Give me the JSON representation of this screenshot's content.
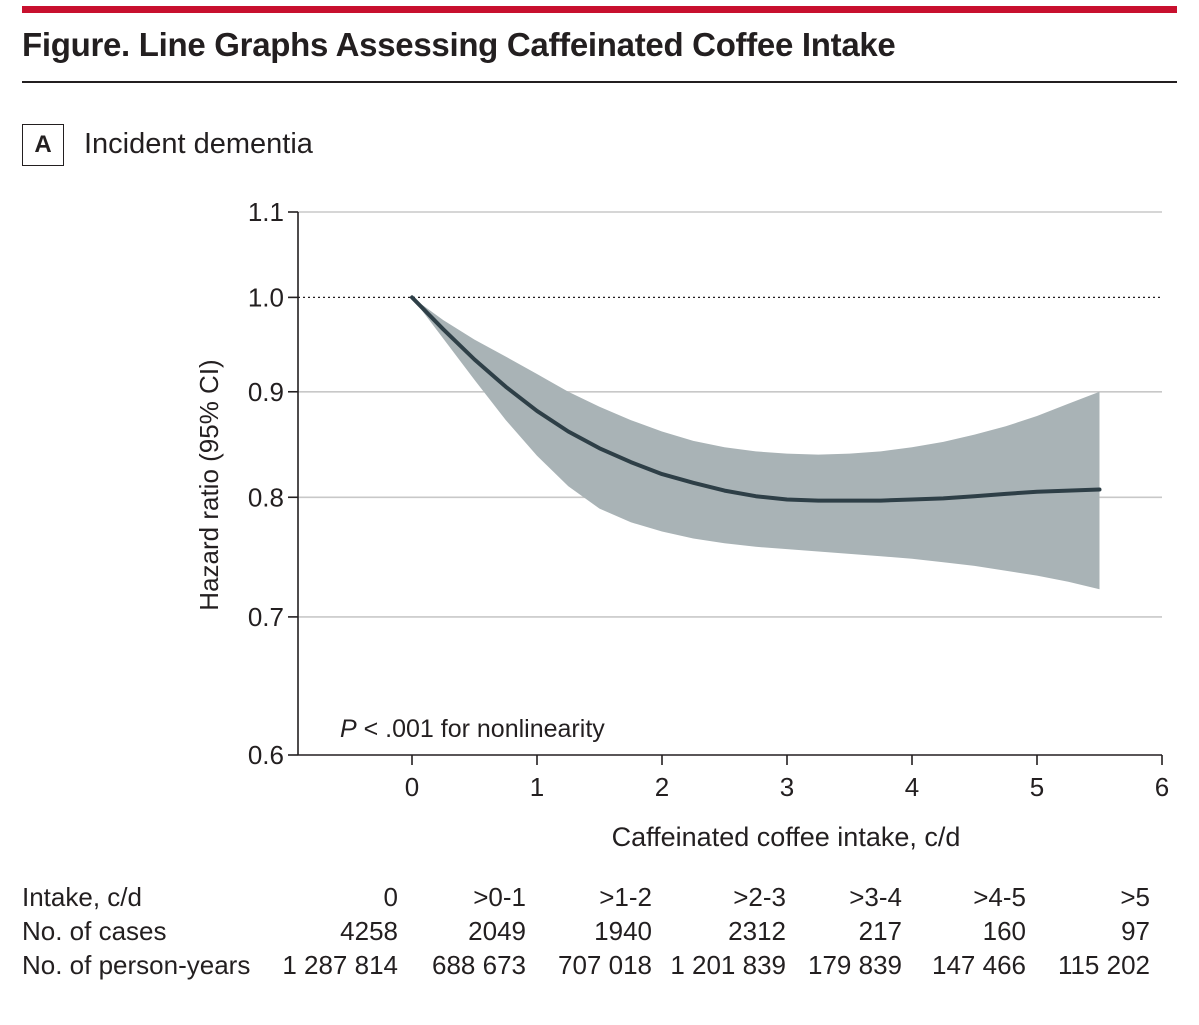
{
  "figure": {
    "title": "Figure. Line Graphs Assessing Caffeinated Coffee Intake",
    "panel_letter": "A",
    "panel_title": "Incident dementia",
    "accent_color": "#c8102e"
  },
  "chart_data": {
    "type": "line",
    "title": "Incident dementia",
    "xlabel": "Caffeinated coffee intake, c/d",
    "ylabel": "Hazard ratio (95% CI)",
    "xlim": [
      -0.9,
      6
    ],
    "ylim": [
      0.6,
      1.1
    ],
    "yscale": "log",
    "xticks": [
      0,
      1,
      2,
      3,
      4,
      5,
      6
    ],
    "yticks": [
      0.6,
      0.7,
      0.8,
      0.9,
      1.0,
      1.1
    ],
    "ytick_labels": [
      "0.6",
      "0.7",
      "0.8",
      "0.9",
      "1.0",
      "1.1"
    ],
    "gridlines": [
      0.7,
      0.8,
      0.9,
      1.1
    ],
    "reference_line": 1.0,
    "annotation_p": "P",
    "annotation_rest": " < .001 for nonlinearity",
    "series": [
      {
        "name": "Hazard ratio",
        "color": "#2e3f47",
        "x": [
          0,
          0.25,
          0.5,
          0.75,
          1,
          1.25,
          1.5,
          1.75,
          2,
          2.25,
          2.5,
          2.75,
          3,
          3.25,
          3.5,
          3.75,
          4,
          4.25,
          4.5,
          4.75,
          5,
          5.25,
          5.5
        ],
        "y": [
          1.0,
          0.965,
          0.933,
          0.905,
          0.881,
          0.861,
          0.845,
          0.832,
          0.821,
          0.813,
          0.806,
          0.801,
          0.798,
          0.797,
          0.797,
          0.797,
          0.798,
          0.799,
          0.801,
          0.803,
          0.805,
          0.806,
          0.807
        ]
      }
    ],
    "ci_band": {
      "name": "95% CI",
      "color": "#a9b3b6",
      "x": [
        0,
        0.25,
        0.5,
        0.75,
        1,
        1.25,
        1.5,
        1.75,
        2,
        2.25,
        2.5,
        2.75,
        3,
        3.25,
        3.5,
        3.75,
        4,
        4.25,
        4.5,
        4.75,
        5,
        5.25,
        5.5
      ],
      "lower": [
        1.0,
        0.955,
        0.912,
        0.872,
        0.838,
        0.81,
        0.79,
        0.778,
        0.77,
        0.764,
        0.76,
        0.757,
        0.755,
        0.753,
        0.751,
        0.749,
        0.747,
        0.744,
        0.741,
        0.737,
        0.733,
        0.728,
        0.722
      ],
      "upper": [
        1.0,
        0.975,
        0.954,
        0.936,
        0.918,
        0.9,
        0.885,
        0.872,
        0.861,
        0.852,
        0.846,
        0.842,
        0.84,
        0.839,
        0.84,
        0.842,
        0.846,
        0.851,
        0.858,
        0.866,
        0.876,
        0.888,
        0.9
      ]
    }
  },
  "table": {
    "rows": [
      {
        "label": "Intake, c/d",
        "cells": [
          "0",
          ">0-1",
          ">1-2",
          ">2-3",
          ">3-4",
          ">4-5",
          ">5"
        ]
      },
      {
        "label": "No. of cases",
        "cells": [
          "4258",
          "2049",
          "1940",
          "2312",
          "217",
          "160",
          "97"
        ]
      },
      {
        "label": "No. of person-years",
        "cells": [
          "1 287 814",
          "688 673",
          "707 018",
          "1 201 839",
          "179 839",
          "147 466",
          "115 202"
        ]
      }
    ]
  }
}
